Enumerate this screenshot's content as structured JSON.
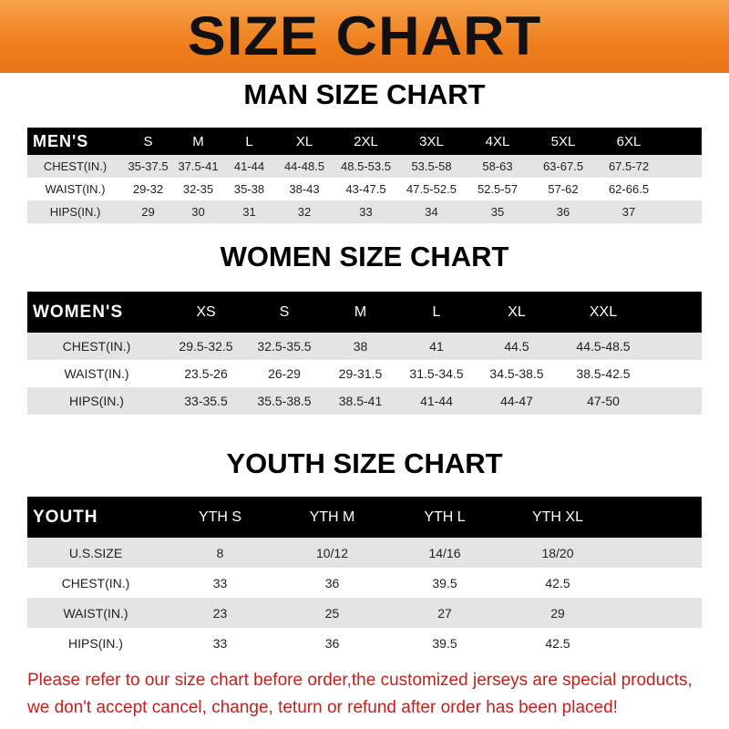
{
  "banner": {
    "title": "SIZE CHART",
    "color": "#ee7f1c"
  },
  "men": {
    "title": "MAN SIZE CHART",
    "label": "MEN'S",
    "sizes": [
      "S",
      "M",
      "L",
      "XL",
      "2XL",
      "3XL",
      "4XL",
      "5XL",
      "6XL"
    ],
    "rows": [
      {
        "name": "CHEST(IN.)",
        "values": [
          "35-37.5",
          "37.5-41",
          "41-44",
          "44-48.5",
          "48.5-53.5",
          "53.5-58",
          "58-63",
          "63-67.5",
          "67.5-72"
        ]
      },
      {
        "name": "WAIST(IN.)",
        "values": [
          "29-32",
          "32-35",
          "35-38",
          "38-43",
          "43-47.5",
          "47.5-52.5",
          "52.5-57",
          "57-62",
          "62-66.5"
        ]
      },
      {
        "name": "HIPS(IN.)",
        "values": [
          "29",
          "30",
          "31",
          "32",
          "33",
          "34",
          "35",
          "36",
          "37"
        ]
      }
    ]
  },
  "women": {
    "title": "WOMEN SIZE CHART",
    "label": "WOMEN'S",
    "sizes": [
      "XS",
      "S",
      "M",
      "L",
      "XL",
      "XXL"
    ],
    "rows": [
      {
        "name": "CHEST(IN.)",
        "values": [
          "29.5-32.5",
          "32.5-35.5",
          "38",
          "41",
          "44.5",
          "44.5-48.5"
        ]
      },
      {
        "name": "WAIST(IN.)",
        "values": [
          "23.5-26",
          "26-29",
          "29-31.5",
          "31.5-34.5",
          "34.5-38.5",
          "38.5-42.5"
        ]
      },
      {
        "name": "HIPS(IN.)",
        "values": [
          "33-35.5",
          "35.5-38.5",
          "38.5-41",
          "41-44",
          "44-47",
          "47-50"
        ]
      }
    ]
  },
  "youth": {
    "title": "YOUTH SIZE CHART",
    "label": "YOUTH",
    "sizes": [
      "YTH S",
      "YTH M",
      "YTH L",
      "YTH XL"
    ],
    "rows": [
      {
        "name": "U.S.SIZE",
        "values": [
          "8",
          "10/12",
          "14/16",
          "18/20"
        ]
      },
      {
        "name": "CHEST(IN.)",
        "values": [
          "33",
          "36",
          "39.5",
          "42.5"
        ]
      },
      {
        "name": "WAIST(IN.)",
        "values": [
          "23",
          "25",
          "27",
          "29"
        ]
      },
      {
        "name": "HIPS(IN.)",
        "values": [
          "33",
          "36",
          "39.5",
          "42.5"
        ]
      }
    ]
  },
  "note": {
    "line1": "Please refer to our size chart before order,the customized jerseys are special products,",
    "line2": "we don't accept cancel, change, teturn or refund after order has been placed!",
    "color": "#c0221e"
  }
}
